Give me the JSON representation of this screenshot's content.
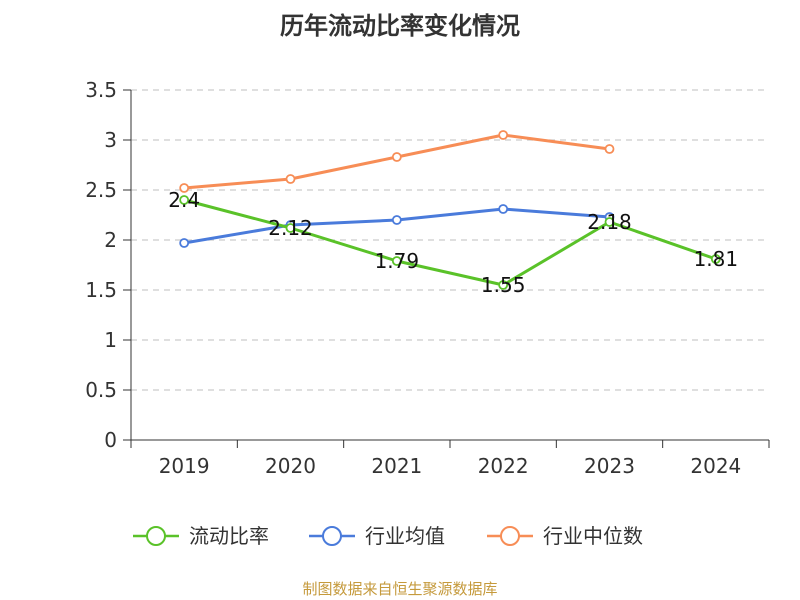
{
  "title": "历年流动比率变化情况",
  "source": "制图数据来自恒生聚源数据库",
  "chart_data": {
    "type": "line",
    "categories": [
      "2019",
      "2020",
      "2021",
      "2022",
      "2023",
      "2024"
    ],
    "ylim": [
      0,
      3.5
    ],
    "yticks": [
      "0",
      "0.5",
      "1",
      "1.5",
      "2",
      "2.5",
      "3",
      "3.5"
    ],
    "grid": true,
    "legend_position": "bottom",
    "series": [
      {
        "name": "流动比率",
        "color": "#5ac229",
        "values": [
          2.4,
          2.12,
          1.79,
          1.55,
          2.18,
          1.81
        ],
        "labels": [
          "2.4",
          "2.12",
          "1.79",
          "1.55",
          "2.18",
          "1.81"
        ]
      },
      {
        "name": "行业均值",
        "color": "#4a7bdb",
        "values": [
          1.97,
          2.15,
          2.2,
          2.31,
          2.23,
          null
        ]
      },
      {
        "name": "行业中位数",
        "color": "#f78d56",
        "values": [
          2.52,
          2.61,
          2.83,
          3.05,
          2.91,
          null
        ]
      }
    ]
  }
}
